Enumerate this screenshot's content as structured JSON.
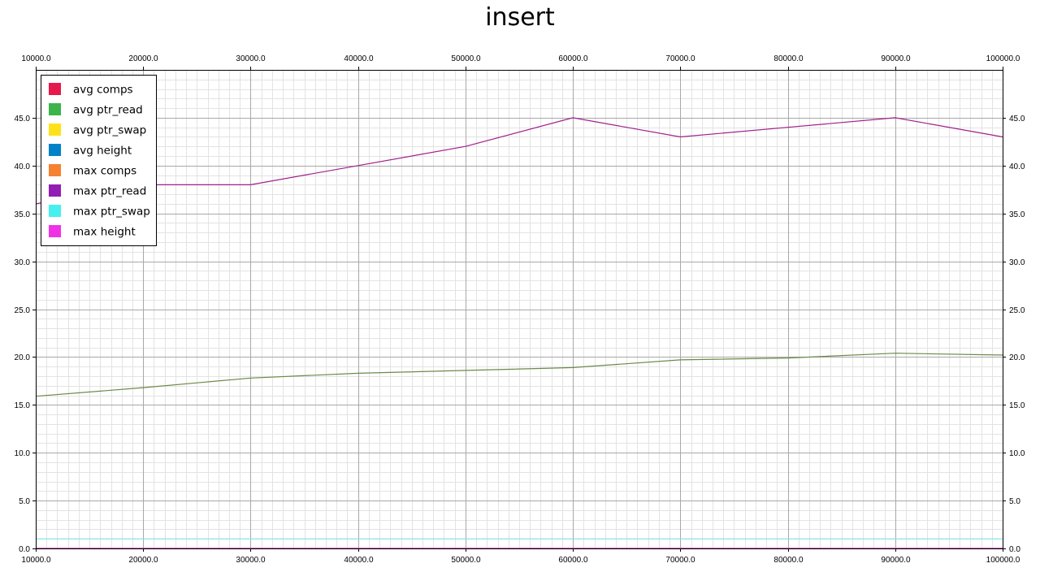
{
  "chart_data": {
    "type": "line",
    "title": "insert",
    "xlabel": "",
    "ylabel": "",
    "xlim": [
      10000.0,
      100000.0
    ],
    "ylim": [
      0.0,
      50.0
    ],
    "x_ticks": [
      "10000.0",
      "20000.0",
      "30000.0",
      "40000.0",
      "50000.0",
      "60000.0",
      "70000.0",
      "80000.0",
      "90000.0",
      "100000.0"
    ],
    "x_tick_values": [
      10000,
      20000,
      30000,
      40000,
      50000,
      60000,
      70000,
      80000,
      90000,
      100000
    ],
    "y_ticks": [
      "0.0",
      "5.0",
      "10.0",
      "15.0",
      "20.0",
      "25.0",
      "30.0",
      "35.0",
      "40.0",
      "45.0"
    ],
    "y_tick_values": [
      0,
      5,
      10,
      15,
      20,
      25,
      30,
      35,
      40,
      45
    ],
    "grid": true,
    "minor_grid": true,
    "legend_position": "top-left",
    "x": [
      10000,
      20000,
      30000,
      40000,
      50000,
      60000,
      70000,
      80000,
      90000,
      100000
    ],
    "series": [
      {
        "name": "avg comps",
        "color": "#e6194b",
        "values": [
          0,
          0,
          0,
          0,
          0,
          0,
          0,
          0,
          0,
          0
        ]
      },
      {
        "name": "avg ptr_read",
        "color": "#3cb44b",
        "values": [
          15.9,
          16.8,
          17.8,
          18.3,
          18.6,
          18.9,
          19.7,
          19.9,
          20.4,
          20.2
        ]
      },
      {
        "name": "avg ptr_swap",
        "color": "#ffe119",
        "values": [
          0,
          0,
          0,
          0,
          0,
          0,
          0,
          0,
          0,
          0
        ]
      },
      {
        "name": "avg height",
        "color": "#0082c8",
        "values": [
          0,
          0,
          0,
          0,
          0,
          0,
          0,
          0,
          0,
          0
        ]
      },
      {
        "name": "max comps",
        "color": "#f58231",
        "values": [
          0,
          0,
          0,
          0,
          0,
          0,
          0,
          0,
          0,
          0
        ]
      },
      {
        "name": "max ptr_read",
        "color": "#911eb4",
        "values": [
          36,
          38,
          38,
          40,
          42,
          45,
          43,
          44,
          45,
          43
        ]
      },
      {
        "name": "max ptr_swap",
        "color": "#46f0f0",
        "values": [
          1,
          1,
          1,
          1,
          1,
          1,
          1,
          1,
          1,
          1
        ]
      },
      {
        "name": "max height",
        "color": "#f032e6",
        "values": [
          0,
          0,
          0,
          0,
          0,
          0,
          0,
          0,
          0,
          0
        ]
      }
    ]
  }
}
